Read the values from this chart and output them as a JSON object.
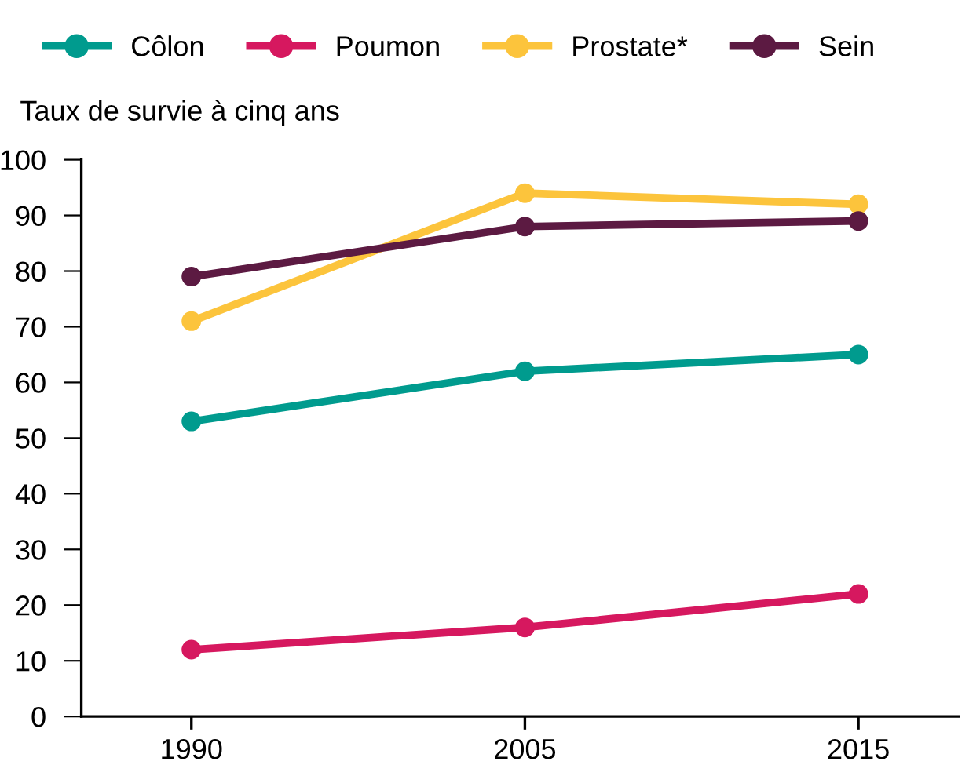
{
  "chart_data": {
    "type": "line",
    "ylabel": "Taux de survie à cinq ans",
    "categories": [
      "1990",
      "2005",
      "2015"
    ],
    "series": [
      {
        "name": "Côlon",
        "color": "#009b8e",
        "values": [
          53,
          62,
          65
        ]
      },
      {
        "name": "Poumon",
        "color": "#d6185f",
        "values": [
          12,
          16,
          22
        ]
      },
      {
        "name": "Prostate*",
        "color": "#fcc43c",
        "values": [
          71,
          94,
          92
        ]
      },
      {
        "name": "Sein",
        "color": "#5c1a42",
        "values": [
          79,
          88,
          89
        ]
      }
    ],
    "ylim": [
      0,
      100
    ],
    "yticks": [
      0,
      10,
      20,
      30,
      40,
      50,
      60,
      70,
      80,
      90,
      100
    ],
    "grid": false,
    "legend": "top",
    "marker": "circle",
    "line_style": "solid"
  }
}
